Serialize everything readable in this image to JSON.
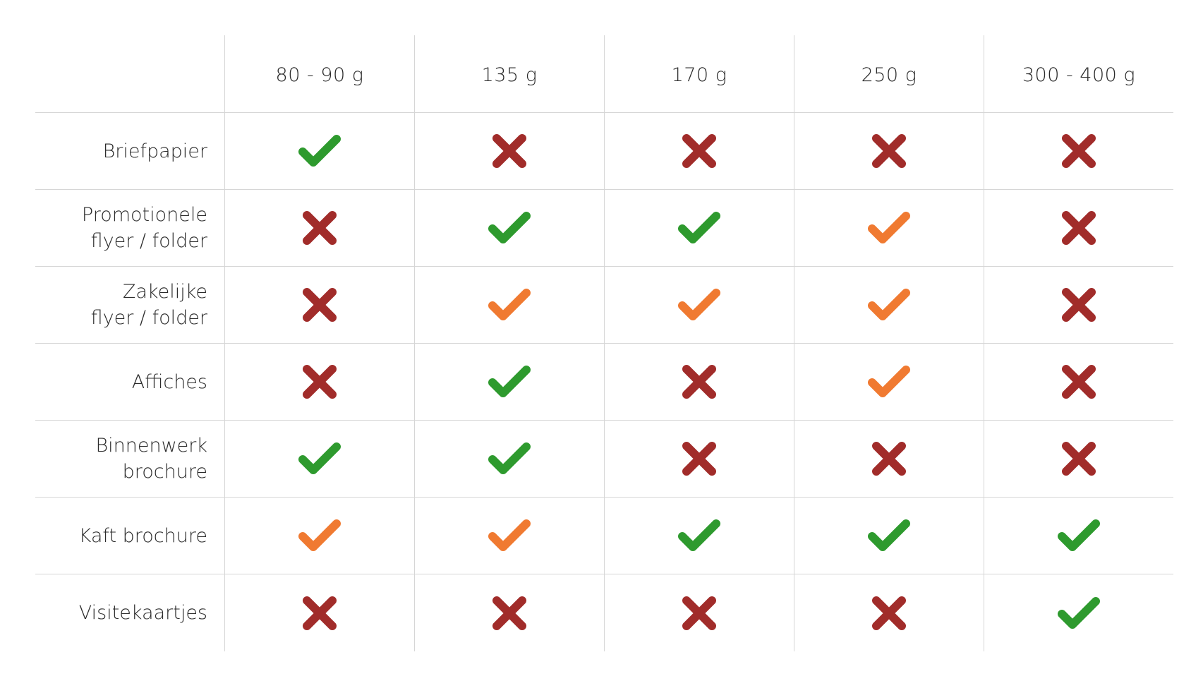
{
  "colors": {
    "check_good": "#2e9a2e",
    "check_partial": "#f07a31",
    "cross_bad": "#a12c2a"
  },
  "columns": [
    "80  - 90 g",
    "135 g",
    "170 g",
    "250 g",
    "300 - 400 g"
  ],
  "rows": [
    {
      "label": "Briefpapier",
      "marks": [
        "check-green",
        "cross-red",
        "cross-red",
        "cross-red",
        "cross-red"
      ]
    },
    {
      "label": "Promotionele\nflyer / folder",
      "marks": [
        "cross-red",
        "check-green",
        "check-green",
        "check-orange",
        "cross-red"
      ]
    },
    {
      "label": "Zakelijke\nflyer / folder",
      "marks": [
        "cross-red",
        "check-orange",
        "check-orange",
        "check-orange",
        "cross-red"
      ]
    },
    {
      "label": "Affiches",
      "marks": [
        "cross-red",
        "check-green",
        "cross-red",
        "check-orange",
        "cross-red"
      ]
    },
    {
      "label": "Binnenwerk\nbrochure",
      "marks": [
        "check-green",
        "check-green",
        "cross-red",
        "cross-red",
        "cross-red"
      ]
    },
    {
      "label": "Kaft brochure",
      "marks": [
        "check-orange",
        "check-orange",
        "check-green",
        "check-green",
        "check-green"
      ]
    },
    {
      "label": "Visitekaartjes",
      "marks": [
        "cross-red",
        "cross-red",
        "cross-red",
        "cross-red",
        "check-green"
      ]
    }
  ]
}
